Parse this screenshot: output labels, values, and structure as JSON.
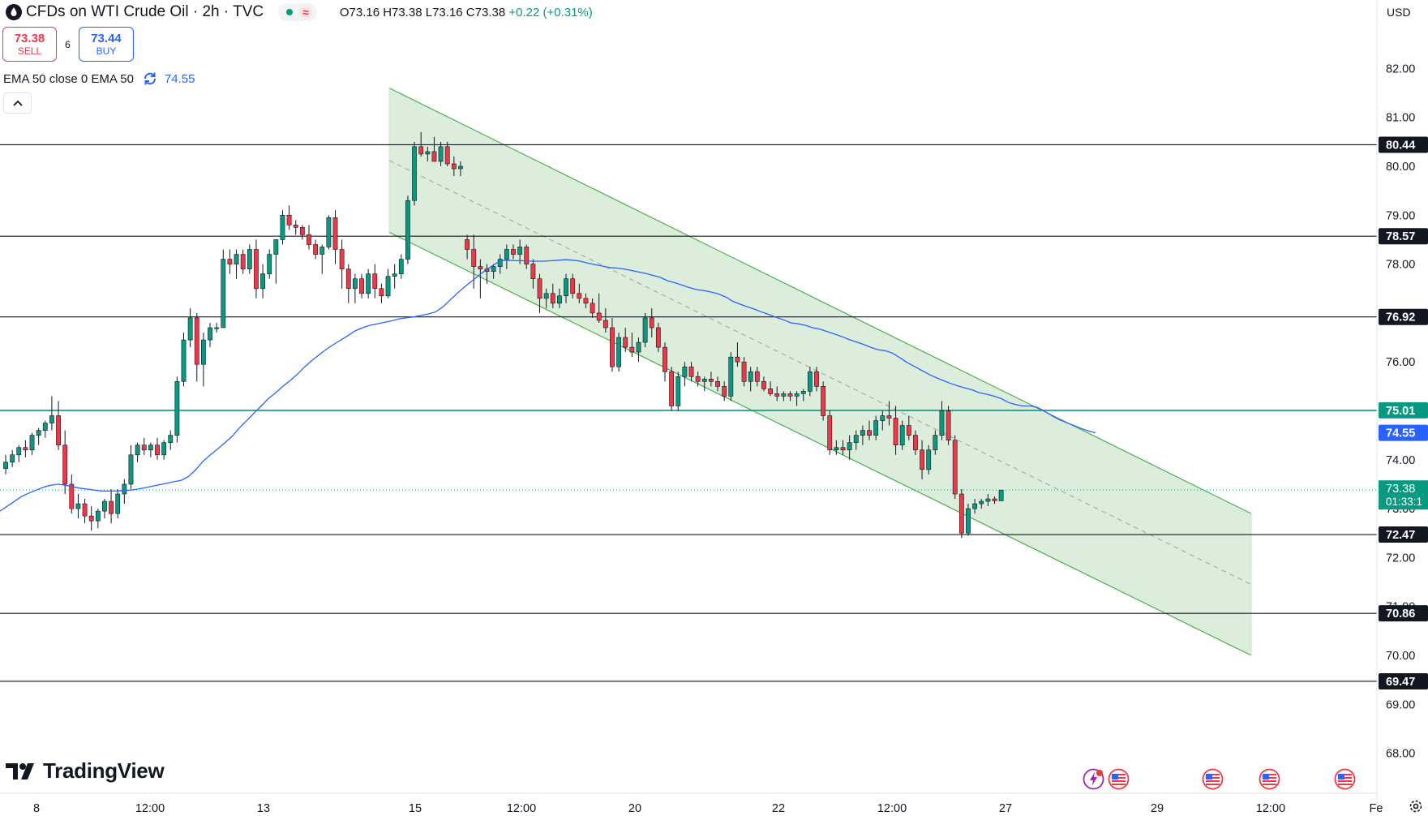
{
  "header": {
    "symbol_title": "CFDs on WTI Crude Oil · 2h · TVC",
    "ohlc_text": "O73.16 H73.38 L73.16 C73.38",
    "change_text": "+0.22 (+0.31%)"
  },
  "trade": {
    "sell_price": "73.38",
    "sell_label": "SELL",
    "spread": "6",
    "buy_price": "73.44",
    "buy_label": "BUY"
  },
  "indicator": {
    "label": "EMA 50 close 0 EMA 50",
    "value": "74.55",
    "color": "#2962ff"
  },
  "currency": "USD",
  "brand": "TradingView",
  "colors": {
    "up": "#089981",
    "down": "#f23645",
    "ema": "#2962ff",
    "channel_fill": "#cfe6cc",
    "channel_line": "#4caf50",
    "support_highlight": "#089981"
  },
  "chart_data": {
    "type": "candlestick",
    "ylim": [
      67.5,
      83.0
    ],
    "y_ticks": [
      68.0,
      69.0,
      70.0,
      71.0,
      72.0,
      73.0,
      74.0,
      75.0,
      76.0,
      77.0,
      78.0,
      79.0,
      80.0,
      81.0,
      82.0
    ],
    "x_ticks": [
      "8",
      "12:00",
      "13",
      "15",
      "12:00",
      "20",
      "22",
      "12:00",
      "27",
      "29",
      "12:00",
      "Fe"
    ],
    "horizontal_levels": [
      {
        "value": 80.44,
        "label": "80.44",
        "style": "black"
      },
      {
        "value": 78.57,
        "label": "78.57",
        "style": "black"
      },
      {
        "value": 76.92,
        "label": "76.92",
        "style": "black"
      },
      {
        "value": 75.01,
        "label": "75.01",
        "style": "green"
      },
      {
        "value": 72.47,
        "label": "72.47",
        "style": "black"
      },
      {
        "value": 70.86,
        "label": "70.86",
        "style": "black"
      },
      {
        "value": 69.47,
        "label": "69.47",
        "style": "black"
      }
    ],
    "ema_last": {
      "value": 74.55,
      "label": "74.55"
    },
    "last_price": {
      "value": 73.38,
      "label": "73.38",
      "countdown": "01:33:1"
    },
    "descending_channel": {
      "upper": [
        {
          "bar": 0,
          "price": 81.6
        },
        {
          "bar": 1,
          "price": 72.9
        }
      ],
      "lower": [
        {
          "bar": 0,
          "price": 78.65
        },
        {
          "bar": 1,
          "price": 70.0
        }
      ],
      "mid": [
        {
          "bar": 0,
          "price": 80.12
        },
        {
          "bar": 1,
          "price": 71.45
        }
      ]
    },
    "candles": [
      [
        73.82,
        74.1,
        73.7,
        73.95
      ],
      [
        73.95,
        74.2,
        73.85,
        74.1
      ],
      [
        74.1,
        74.3,
        73.95,
        74.25
      ],
      [
        74.25,
        74.4,
        74.05,
        74.2
      ],
      [
        74.2,
        74.55,
        74.1,
        74.5
      ],
      [
        74.5,
        74.65,
        74.3,
        74.6
      ],
      [
        74.6,
        74.8,
        74.45,
        74.75
      ],
      [
        74.75,
        75.3,
        74.6,
        74.9
      ],
      [
        74.9,
        75.2,
        74.2,
        74.3
      ],
      [
        74.3,
        74.6,
        73.3,
        73.5
      ],
      [
        73.5,
        73.7,
        72.9,
        73.0
      ],
      [
        73.0,
        73.3,
        72.8,
        73.1
      ],
      [
        73.1,
        73.2,
        72.7,
        72.85
      ],
      [
        72.85,
        73.05,
        72.55,
        72.75
      ],
      [
        72.75,
        73.0,
        72.6,
        72.95
      ],
      [
        72.95,
        73.2,
        72.8,
        73.15
      ],
      [
        73.15,
        73.4,
        72.7,
        72.9
      ],
      [
        72.9,
        73.4,
        72.8,
        73.3
      ],
      [
        73.3,
        73.6,
        73.1,
        73.5
      ],
      [
        73.5,
        74.3,
        73.4,
        74.1
      ],
      [
        74.1,
        74.35,
        73.95,
        74.3
      ],
      [
        74.3,
        74.45,
        74.1,
        74.2
      ],
      [
        74.2,
        74.35,
        74.05,
        74.3
      ],
      [
        74.3,
        74.45,
        74.0,
        74.1
      ],
      [
        74.1,
        74.4,
        74.0,
        74.35
      ],
      [
        74.35,
        74.6,
        74.2,
        74.5
      ],
      [
        74.5,
        75.7,
        74.35,
        75.6
      ],
      [
        75.6,
        76.6,
        75.5,
        76.45
      ],
      [
        76.45,
        77.1,
        76.3,
        76.9
      ],
      [
        76.9,
        77.0,
        75.6,
        75.95
      ],
      [
        75.95,
        76.6,
        75.5,
        76.45
      ],
      [
        76.45,
        76.8,
        76.3,
        76.7
      ],
      [
        76.7,
        76.8,
        76.6,
        76.7
      ],
      [
        76.7,
        78.3,
        76.7,
        78.1
      ],
      [
        78.1,
        78.3,
        77.8,
        78.0
      ],
      [
        78.0,
        78.3,
        77.7,
        78.2
      ],
      [
        78.2,
        78.3,
        77.8,
        77.9
      ],
      [
        77.9,
        78.4,
        77.8,
        78.3
      ],
      [
        78.3,
        78.5,
        77.3,
        77.5
      ],
      [
        77.5,
        78.0,
        77.3,
        77.8
      ],
      [
        77.8,
        78.3,
        77.7,
        78.2
      ],
      [
        78.2,
        78.5,
        77.6,
        78.5
      ],
      [
        78.5,
        79.1,
        78.4,
        79.0
      ],
      [
        79.0,
        79.2,
        78.7,
        78.8
      ],
      [
        78.8,
        78.9,
        78.6,
        78.75
      ],
      [
        78.75,
        78.8,
        78.5,
        78.6
      ],
      [
        78.6,
        78.8,
        78.3,
        78.4
      ],
      [
        78.4,
        78.5,
        78.1,
        78.2
      ],
      [
        78.2,
        78.4,
        77.8,
        78.35
      ],
      [
        78.35,
        79.0,
        78.3,
        78.95
      ],
      [
        78.95,
        79.1,
        78.0,
        78.3
      ],
      [
        78.3,
        78.5,
        77.5,
        77.9
      ],
      [
        77.9,
        78.0,
        77.2,
        77.5
      ],
      [
        77.5,
        77.8,
        77.2,
        77.7
      ],
      [
        77.7,
        77.8,
        77.3,
        77.4
      ],
      [
        77.4,
        77.9,
        77.3,
        77.8
      ],
      [
        77.8,
        78.0,
        77.3,
        77.5
      ],
      [
        77.5,
        77.6,
        77.2,
        77.35
      ],
      [
        77.35,
        77.9,
        77.3,
        77.75
      ],
      [
        77.75,
        78.0,
        77.5,
        77.8
      ],
      [
        77.8,
        78.2,
        77.7,
        78.1
      ],
      [
        78.1,
        79.4,
        78.0,
        79.3
      ],
      [
        79.3,
        80.5,
        79.2,
        80.4
      ],
      [
        80.4,
        80.7,
        80.2,
        80.25
      ],
      [
        80.25,
        80.4,
        80.1,
        80.3
      ],
      [
        80.3,
        80.6,
        80.1,
        80.1
      ],
      [
        80.1,
        80.5,
        80.0,
        80.4
      ],
      [
        80.4,
        80.5,
        80.0,
        80.05
      ],
      [
        80.05,
        80.2,
        79.8,
        79.95
      ],
      [
        79.95,
        80.1,
        79.8,
        80.0
      ],
      [
        78.5,
        78.6,
        78.1,
        78.3
      ],
      [
        78.3,
        78.6,
        77.5,
        77.95
      ],
      [
        77.95,
        78.1,
        77.3,
        77.9
      ],
      [
        77.9,
        78.0,
        77.6,
        77.85
      ],
      [
        77.85,
        78.0,
        77.7,
        77.95
      ],
      [
        77.95,
        78.2,
        77.8,
        78.1
      ],
      [
        78.1,
        78.4,
        77.9,
        78.3
      ],
      [
        78.3,
        78.4,
        78.1,
        78.2
      ],
      [
        78.2,
        78.5,
        78.0,
        78.35
      ],
      [
        78.35,
        78.4,
        77.9,
        78.0
      ],
      [
        78.0,
        78.1,
        77.5,
        77.7
      ],
      [
        77.7,
        77.8,
        77.0,
        77.3
      ],
      [
        77.3,
        77.5,
        77.1,
        77.4
      ],
      [
        77.4,
        77.6,
        77.1,
        77.2
      ],
      [
        77.2,
        77.5,
        77.1,
        77.35
      ],
      [
        77.35,
        77.8,
        77.2,
        77.7
      ],
      [
        77.7,
        77.8,
        77.3,
        77.4
      ],
      [
        77.4,
        77.6,
        77.2,
        77.3
      ],
      [
        77.3,
        77.4,
        77.1,
        77.2
      ],
      [
        77.2,
        77.3,
        76.9,
        77.0
      ],
      [
        77.0,
        77.4,
        76.8,
        76.85
      ],
      [
        76.85,
        77.1,
        76.6,
        76.7
      ],
      [
        76.7,
        76.9,
        75.8,
        75.9
      ],
      [
        75.9,
        76.6,
        75.8,
        76.5
      ],
      [
        76.5,
        76.7,
        76.2,
        76.3
      ],
      [
        76.3,
        76.6,
        76.1,
        76.2
      ],
      [
        76.2,
        76.5,
        76.0,
        76.4
      ],
      [
        76.4,
        77.0,
        76.3,
        76.9
      ],
      [
        76.9,
        77.1,
        76.5,
        76.7
      ],
      [
        76.7,
        76.8,
        76.2,
        76.3
      ],
      [
        76.3,
        76.4,
        75.6,
        75.8
      ],
      [
        75.8,
        75.9,
        75.0,
        75.1
      ],
      [
        75.1,
        75.8,
        75.0,
        75.7
      ],
      [
        75.7,
        76.0,
        75.5,
        75.9
      ],
      [
        75.9,
        76.0,
        75.6,
        75.7
      ],
      [
        75.7,
        75.8,
        75.5,
        75.6
      ],
      [
        75.6,
        75.7,
        75.4,
        75.65
      ],
      [
        75.65,
        75.8,
        75.5,
        75.6
      ],
      [
        75.6,
        75.7,
        75.4,
        75.5
      ],
      [
        75.5,
        75.6,
        75.2,
        75.3
      ],
      [
        75.3,
        76.2,
        75.2,
        76.1
      ],
      [
        76.1,
        76.4,
        75.9,
        76.0
      ],
      [
        76.0,
        76.1,
        75.5,
        75.6
      ],
      [
        75.6,
        75.9,
        75.4,
        75.8
      ],
      [
        75.8,
        75.9,
        75.5,
        75.6
      ],
      [
        75.6,
        75.7,
        75.4,
        75.45
      ],
      [
        75.45,
        75.6,
        75.3,
        75.35
      ],
      [
        75.35,
        75.5,
        75.2,
        75.3
      ],
      [
        75.3,
        75.4,
        75.2,
        75.35
      ],
      [
        75.35,
        75.4,
        75.2,
        75.3
      ],
      [
        75.3,
        75.4,
        75.1,
        75.35
      ],
      [
        75.35,
        75.45,
        75.2,
        75.4
      ],
      [
        75.4,
        75.9,
        75.3,
        75.8
      ],
      [
        75.8,
        75.9,
        75.4,
        75.5
      ],
      [
        75.5,
        75.6,
        74.8,
        74.9
      ],
      [
        74.9,
        75.0,
        74.1,
        74.2
      ],
      [
        74.2,
        74.4,
        74.1,
        74.25
      ],
      [
        74.25,
        74.4,
        74.1,
        74.2
      ],
      [
        74.2,
        74.5,
        74.0,
        74.35
      ],
      [
        74.35,
        74.6,
        74.2,
        74.5
      ],
      [
        74.5,
        74.7,
        74.3,
        74.6
      ],
      [
        74.6,
        74.8,
        74.4,
        74.5
      ],
      [
        74.5,
        74.9,
        74.4,
        74.8
      ],
      [
        74.8,
        75.0,
        74.6,
        74.9
      ],
      [
        74.9,
        75.2,
        74.7,
        74.85
      ],
      [
        74.85,
        75.1,
        74.1,
        74.3
      ],
      [
        74.3,
        74.8,
        74.2,
        74.7
      ],
      [
        74.7,
        74.9,
        74.4,
        74.5
      ],
      [
        74.5,
        74.6,
        74.1,
        74.2
      ],
      [
        74.2,
        74.4,
        73.6,
        73.8
      ],
      [
        73.8,
        74.3,
        73.7,
        74.2
      ],
      [
        74.2,
        74.6,
        74.1,
        74.5
      ],
      [
        74.5,
        75.2,
        74.4,
        75.0
      ],
      [
        75.0,
        75.1,
        74.3,
        74.4
      ],
      [
        74.4,
        74.5,
        73.2,
        73.3
      ],
      [
        73.3,
        73.4,
        72.4,
        72.5
      ],
      [
        72.5,
        73.1,
        72.45,
        73.0
      ],
      [
        73.0,
        73.2,
        72.9,
        73.1
      ],
      [
        73.1,
        73.2,
        73.0,
        73.15
      ],
      [
        73.15,
        73.3,
        73.05,
        73.2
      ],
      [
        73.2,
        73.25,
        73.1,
        73.16
      ],
      [
        73.16,
        73.38,
        73.16,
        73.38
      ]
    ],
    "ema50": [
      72.95,
      73.05,
      73.15,
      73.25,
      73.32,
      73.38,
      73.44,
      73.48,
      73.5,
      73.48,
      73.45,
      73.42,
      73.4,
      73.38,
      73.36,
      73.36,
      73.36,
      73.37,
      73.38,
      73.4,
      73.43,
      73.46,
      73.49,
      73.52,
      73.55,
      73.58,
      73.66,
      73.8,
      73.97,
      74.1,
      74.22,
      74.35,
      74.48,
      74.65,
      74.8,
      74.95,
      75.1,
      75.25,
      75.37,
      75.5,
      75.62,
      75.75,
      75.9,
      76.03,
      76.15,
      76.26,
      76.36,
      76.45,
      76.54,
      76.64,
      76.7,
      76.75,
      76.78,
      76.81,
      76.84,
      76.88,
      76.9,
      76.92,
      76.95,
      76.98,
      77.02,
      77.12,
      77.26,
      77.4,
      77.53,
      77.65,
      77.77,
      77.88,
      77.98,
      78.07,
      78.08,
      78.07,
      78.07,
      78.06,
      78.06,
      78.06,
      78.07,
      78.08,
      78.09,
      78.08,
      78.06,
      78.02,
      77.99,
      77.96,
      77.93,
      77.92,
      77.9,
      77.87,
      77.84,
      77.81,
      77.77,
      77.73,
      77.66,
      77.62,
      77.57,
      77.52,
      77.48,
      77.46,
      77.43,
      77.39,
      77.33,
      77.24,
      77.18,
      77.13,
      77.08,
      77.02,
      76.97,
      76.91,
      76.86,
      76.8,
      76.78,
      76.75,
      76.7,
      76.67,
      76.62,
      76.57,
      76.52,
      76.46,
      76.41,
      76.36,
      76.3,
      76.25,
      76.23,
      76.18,
      76.09,
      75.99,
      75.91,
      75.83,
      75.75,
      75.68,
      75.62,
      75.56,
      75.51,
      75.47,
      75.43,
      75.37,
      75.34,
      75.3,
      75.25,
      75.17,
      75.13,
      75.1,
      75.1,
      75.07,
      74.99,
      74.9,
      74.82,
      74.76,
      74.7,
      74.64,
      74.59,
      74.55
    ]
  },
  "events": [
    {
      "icon": "lightning-us-flag-icon"
    },
    {
      "icon": "us-flag-icon"
    },
    {
      "icon": "us-flag-icon"
    },
    {
      "icon": "us-flag-icon"
    }
  ]
}
